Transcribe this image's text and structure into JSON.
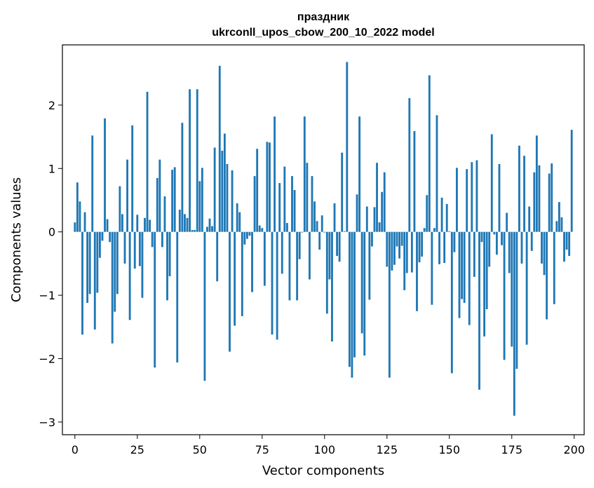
{
  "chart_data": {
    "type": "bar",
    "title": "праздник",
    "subtitle": "ukrconll_upos_cbow_200_10_2022 model",
    "xlabel": "Vector components",
    "ylabel": "Components values",
    "xlim": [
      -5,
      204
    ],
    "ylim": [
      -3.2,
      2.95
    ],
    "xticks": [
      0,
      25,
      50,
      75,
      100,
      125,
      150,
      175,
      200
    ],
    "xtick_labels": [
      "0",
      "25",
      "50",
      "75",
      "100",
      "125",
      "150",
      "175",
      "200"
    ],
    "yticks": [
      -3,
      -2,
      -1,
      0,
      1,
      2
    ],
    "ytick_labels": [
      "−3",
      "−2",
      "−1",
      "0",
      "1",
      "2"
    ],
    "bar_color": "#1f77b4",
    "grid": false,
    "x": [
      0,
      1,
      2,
      3,
      4,
      5,
      6,
      7,
      8,
      9,
      10,
      11,
      12,
      13,
      14,
      15,
      16,
      17,
      18,
      19,
      20,
      21,
      22,
      23,
      24,
      25,
      26,
      27,
      28,
      29,
      30,
      31,
      32,
      33,
      34,
      35,
      36,
      37,
      38,
      39,
      40,
      41,
      42,
      43,
      44,
      45,
      46,
      47,
      48,
      49,
      50,
      51,
      52,
      53,
      54,
      55,
      56,
      57,
      58,
      59,
      60,
      61,
      62,
      63,
      64,
      65,
      66,
      67,
      68,
      69,
      70,
      71,
      72,
      73,
      74,
      75,
      76,
      77,
      78,
      79,
      80,
      81,
      82,
      83,
      84,
      85,
      86,
      87,
      88,
      89,
      90,
      91,
      92,
      93,
      94,
      95,
      96,
      97,
      98,
      99,
      100,
      101,
      102,
      103,
      104,
      105,
      106,
      107,
      108,
      109,
      110,
      111,
      112,
      113,
      114,
      115,
      116,
      117,
      118,
      119,
      120,
      121,
      122,
      123,
      124,
      125,
      126,
      127,
      128,
      129,
      130,
      131,
      132,
      133,
      134,
      135,
      136,
      137,
      138,
      139,
      140,
      141,
      142,
      143,
      144,
      145,
      146,
      147,
      148,
      149,
      150,
      151,
      152,
      153,
      154,
      155,
      156,
      157,
      158,
      159,
      160,
      161,
      162,
      163,
      164,
      165,
      166,
      167,
      168,
      169,
      170,
      171,
      172,
      173,
      174,
      175,
      176,
      177,
      178,
      179,
      180,
      181,
      182,
      183,
      184,
      185,
      186,
      187,
      188,
      189,
      190,
      191,
      192,
      193,
      194,
      195,
      196,
      197,
      198,
      199
    ],
    "values": [
      0.15,
      0.78,
      0.48,
      -1.62,
      0.31,
      -1.12,
      -0.98,
      1.52,
      -1.54,
      -0.96,
      -0.41,
      -0.14,
      1.79,
      0.2,
      -0.16,
      -1.76,
      -1.26,
      -0.98,
      0.72,
      0.28,
      -0.5,
      1.14,
      -1.39,
      1.68,
      -0.58,
      0.27,
      -0.54,
      -1.04,
      0.22,
      2.21,
      0.19,
      -0.24,
      -2.14,
      0.85,
      1.14,
      -0.24,
      0.56,
      -1.08,
      -0.7,
      0.98,
      1.02,
      -2.06,
      0.35,
      1.72,
      0.28,
      0.22,
      2.25,
      0.03,
      0.03,
      2.25,
      0.8,
      1.01,
      -2.35,
      0.08,
      0.21,
      0.09,
      1.33,
      -0.78,
      2.62,
      1.28,
      1.55,
      1.07,
      -1.89,
      0.97,
      -1.48,
      0.45,
      0.31,
      -1.33,
      -0.2,
      -0.11,
      -0.06,
      -0.95,
      0.88,
      1.31,
      0.1,
      0.06,
      -0.85,
      1.42,
      1.41,
      -1.62,
      1.82,
      -1.7,
      0.77,
      -0.66,
      1.03,
      0.14,
      -1.08,
      0.88,
      0.66,
      -1.08,
      -0.43,
      -0.01,
      1.82,
      1.09,
      -0.75,
      0.88,
      0.48,
      0.17,
      -0.28,
      0.26,
      -0.01,
      -1.29,
      -0.75,
      -1.73,
      0.45,
      -0.38,
      -0.47,
      1.25,
      0.01,
      2.68,
      -2.13,
      -2.3,
      -1.98,
      0.59,
      1.82,
      -1.6,
      -1.95,
      0.4,
      -1.07,
      -0.23,
      0.39,
      1.09,
      0.15,
      0.63,
      0.94,
      -0.55,
      -2.3,
      -0.61,
      -0.52,
      -0.23,
      -0.42,
      -0.22,
      -0.92,
      -0.65,
      2.11,
      -0.64,
      1.59,
      -1.25,
      -0.48,
      -0.39,
      0.06,
      0.58,
      2.47,
      -1.15,
      0.06,
      1.84,
      -0.51,
      0.54,
      -0.49,
      0.44,
      0.01,
      -2.23,
      -0.32,
      1.01,
      -1.36,
      -1.06,
      -1.12,
      0.99,
      -1.47,
      1.1,
      -0.71,
      1.13,
      -2.49,
      -0.16,
      -1.65,
      -1.22,
      -0.55,
      1.54,
      -0.04,
      -0.36,
      1.07,
      -0.21,
      -2.02,
      0.3,
      -0.65,
      -1.81,
      -2.9,
      -2.16,
      1.36,
      -0.5,
      1.2,
      -1.78,
      0.4,
      -0.3,
      0.94,
      1.52,
      1.05,
      -0.5,
      -0.68,
      -1.38,
      0.92,
      1.08,
      -1.14,
      0.17,
      0.47,
      0.23,
      -0.47,
      -0.28,
      -0.38,
      1.61
    ]
  }
}
